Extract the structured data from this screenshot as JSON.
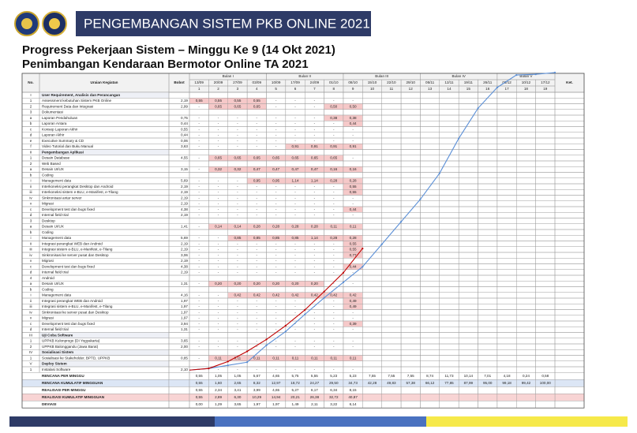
{
  "banner": "PENGEMBANGAN SISTEM PKB ONLINE 2021",
  "title": "Progress Pekerjaan Sistem – Minggu Ke 9 (14 Okt 2021)",
  "subtitle": "Penimbangan Kendaraan Bermotor Online TA 2021",
  "table": {
    "headers": {
      "no": "No.",
      "item": "Uraian Kegiatan",
      "bobot": "Bobot",
      "ket": "Ket.",
      "months": [
        "Bulan I",
        "Bulan II",
        "Bulan III",
        "Bulan IV",
        "Bulan V"
      ],
      "month_spans": [
        4,
        4,
        4,
        4,
        3
      ],
      "dates": [
        "13/09",
        "20/09",
        "27/09",
        "03/09",
        "10/09",
        "17/09",
        "24/09",
        "01/10",
        "08/10",
        "15/10",
        "22/10",
        "29/10",
        "05/11",
        "12/11",
        "19/11",
        "26/11",
        "03/12",
        "10/12",
        "17/12"
      ],
      "weeks": [
        1,
        2,
        3,
        4,
        5,
        6,
        7,
        8,
        9,
        10,
        11,
        12,
        13,
        14,
        15,
        16,
        17,
        18,
        19
      ]
    },
    "rows": [
      {
        "no": "I",
        "item": "User Requirement, Analisis dan Perancangan",
        "section": true
      },
      {
        "no": "1",
        "item": "Assessment kebutuhan Sistem PKB Online",
        "bobot": "2,19",
        "cells": [
          "0,55",
          "0,55",
          "0,55",
          "0,55",
          "-",
          "-",
          "-",
          "-",
          "-"
        ]
      },
      {
        "no": "2",
        "item": "Requirement Data dan Integrasi",
        "bobot": "2,99",
        "cells": [
          "-",
          "0,65",
          "0,65",
          "0,65",
          "-",
          "-",
          "-",
          "0,50",
          "0,50"
        ]
      },
      {
        "no": "3",
        "item": "Dokumentasi"
      },
      {
        "no": "a",
        "item": "Laporan Pendahuluan",
        "bobot": "0,75",
        "cells": [
          "-",
          "-",
          "-",
          "-",
          "-",
          "-",
          "-",
          "0,38",
          "0,38"
        ]
      },
      {
        "no": "b",
        "item": "Laporan Antara",
        "bobot": "0,44",
        "cells": [
          "-",
          "-",
          "-",
          "-",
          "-",
          "-",
          "-",
          "-",
          "0,44"
        ]
      },
      {
        "no": "c",
        "item": "Konsep Laporan Akhir",
        "bobot": "0,55",
        "cells": [
          "-",
          "-",
          "-",
          "-",
          "-",
          "-",
          "-",
          "-",
          "-"
        ]
      },
      {
        "no": "d",
        "item": "Laporan Akhir",
        "bobot": "0,44",
        "cells": [
          "-",
          "-",
          "-",
          "-",
          "-",
          "-",
          "-",
          "-",
          "-"
        ]
      },
      {
        "no": "e",
        "item": "Executive Summary & CD",
        "bobot": "0,06",
        "cells": [
          "-",
          "-",
          "-",
          "-",
          "-",
          "-",
          "-",
          "-",
          "-"
        ]
      },
      {
        "no": "f",
        "item": "Video Tutorial dan Buku Manual",
        "bobot": "3,63",
        "cells": [
          "-",
          "-",
          "-",
          "-",
          "-",
          "0,91",
          "0,91",
          "0,91",
          "0,91"
        ]
      },
      {
        "no": "II",
        "item": "Pengembangan Aplikasi",
        "section": true
      },
      {
        "no": "1",
        "item": "Desain Database",
        "bobot": "4,55",
        "cells": [
          "-",
          "0,65",
          "0,65",
          "0,65",
          "0,65",
          "0,65",
          "0,65",
          "0,65",
          "-"
        ]
      },
      {
        "no": "2",
        "item": "Web Based"
      },
      {
        "no": "a",
        "item": "Desain UI/UX",
        "bobot": "3,15",
        "cells": [
          "-",
          "0,32",
          "0,32",
          "0,47",
          "0,47",
          "0,47",
          "0,47",
          "0,16",
          "0,16"
        ]
      },
      {
        "no": "b",
        "item": "Coding"
      },
      {
        "no": "i",
        "item": "Management data",
        "bobot": "5,69",
        "cells": [
          "-",
          "-",
          "-",
          "0,95",
          "0,95",
          "1,14",
          "1,14",
          "0,28",
          "0,28"
        ]
      },
      {
        "no": "ii",
        "item": "Interkoneksi perangkat Desktop dan Android",
        "bobot": "2,19",
        "cells": [
          "-",
          "-",
          "-",
          "-",
          "-",
          "-",
          "-",
          "-",
          "0,55"
        ]
      },
      {
        "no": "iii",
        "item": "Interkoneksi sistem e-BLU, e-Manifest, e-Tilang",
        "bobot": "2,19",
        "cells": [
          "-",
          "-",
          "-",
          "-",
          "-",
          "-",
          "-",
          "-",
          "0,55"
        ]
      },
      {
        "no": "iv",
        "item": "Sinkronisasi antar server",
        "bobot": "2,19",
        "cells": [
          "-",
          "-",
          "-",
          "-",
          "-",
          "-",
          "-",
          "-",
          "-"
        ]
      },
      {
        "no": "v",
        "item": "Migrasi",
        "bobot": "2,19",
        "cells": [
          "-",
          "-",
          "-",
          "-",
          "-",
          "-",
          "-",
          "-",
          "-"
        ]
      },
      {
        "no": "c",
        "item": "Development test dan bugs fixed",
        "bobot": "4,38",
        "cells": [
          "-",
          "-",
          "-",
          "-",
          "-",
          "-",
          "-",
          "-",
          "0,44"
        ]
      },
      {
        "no": "d",
        "item": "Internal field trial",
        "bobot": "2,19",
        "cells": [
          "-",
          "-",
          "-",
          "-",
          "-",
          "-",
          "-",
          "-",
          "-"
        ]
      },
      {
        "no": "3",
        "item": "Desktop"
      },
      {
        "no": "a",
        "item": "Desain UI/UX",
        "bobot": "1,41",
        "cells": [
          "-",
          "0,14",
          "0,14",
          "0,28",
          "0,28",
          "0,28",
          "0,28",
          "0,11",
          "0,11"
        ]
      },
      {
        "no": "b",
        "item": "Coding"
      },
      {
        "no": "i",
        "item": "Management data",
        "bobot": "5,69",
        "cells": [
          "-",
          "-",
          "0,85",
          "0,85",
          "0,85",
          "0,85",
          "1,14",
          "0,28",
          "0,28"
        ]
      },
      {
        "no": "ii",
        "item": "Integrasi perangkat WEB dan Android",
        "bobot": "2,19",
        "cells": [
          "-",
          "-",
          "-",
          "-",
          "-",
          "-",
          "-",
          "-",
          "0,55"
        ]
      },
      {
        "no": "iii",
        "item": "Integrasi sistem e-BLU, e-Manifest, e-Tilang",
        "bobot": "2,19",
        "cells": [
          "-",
          "-",
          "-",
          "-",
          "-",
          "-",
          "-",
          "-",
          "0,55"
        ]
      },
      {
        "no": "iv",
        "item": "Sinkronisasi ke server pusat dan Desktop",
        "bobot": "3,06",
        "cells": [
          "-",
          "-",
          "-",
          "-",
          "-",
          "-",
          "-",
          "-",
          "0,77"
        ]
      },
      {
        "no": "v",
        "item": "Migrasi",
        "bobot": "2,19",
        "cells": [
          "-",
          "-",
          "-",
          "-",
          "-",
          "-",
          "-",
          "-",
          "-"
        ]
      },
      {
        "no": "c",
        "item": "Development test dan bugs fixed",
        "bobot": "4,38",
        "cells": [
          "-",
          "-",
          "-",
          "-",
          "-",
          "-",
          "-",
          "-",
          "0,44"
        ]
      },
      {
        "no": "d",
        "item": "Internal field trial",
        "bobot": "2,19",
        "cells": [
          "-",
          "-",
          "-",
          "-",
          "-",
          "-",
          "-",
          "-",
          "-"
        ]
      },
      {
        "no": "4",
        "item": "Android"
      },
      {
        "no": "a",
        "item": "Desain UI/UX",
        "bobot": "1,31",
        "cells": [
          "-",
          "0,20",
          "0,20",
          "0,20",
          "0,20",
          "0,20",
          "0,20",
          "-",
          "-"
        ]
      },
      {
        "no": "b",
        "item": "Coding"
      },
      {
        "no": "i",
        "item": "Management data",
        "bobot": "4,16",
        "cells": [
          "-",
          "-",
          "0,42",
          "0,42",
          "0,42",
          "0,42",
          "0,42",
          "0,42",
          "0,42"
        ]
      },
      {
        "no": "ii",
        "item": "Integrasi perangkat WEB dan Android",
        "bobot": "1,97",
        "cells": [
          "-",
          "-",
          "-",
          "-",
          "-",
          "-",
          "-",
          "-",
          "0,49"
        ]
      },
      {
        "no": "iii",
        "item": "Integrasi sistem e-BLU, e-Manifest, e-Tilang",
        "bobot": "1,97",
        "cells": [
          "-",
          "-",
          "-",
          "-",
          "-",
          "-",
          "-",
          "-",
          "0,49"
        ]
      },
      {
        "no": "iv",
        "item": "Sinkronisasi ke server pusat dan Desktop",
        "bobot": "1,97",
        "cells": [
          "-",
          "-",
          "-",
          "-",
          "-",
          "-",
          "-",
          "-",
          "-"
        ]
      },
      {
        "no": "v",
        "item": "Migrasi",
        "bobot": "1,97",
        "cells": [
          "-",
          "-",
          "-",
          "-",
          "-",
          "-",
          "-",
          "-",
          "-"
        ]
      },
      {
        "no": "c",
        "item": "Development test dan bugs fixed",
        "bobot": "3,94",
        "cells": [
          "-",
          "-",
          "-",
          "-",
          "-",
          "-",
          "-",
          "-",
          "0,39"
        ]
      },
      {
        "no": "d",
        "item": "Internal field trial",
        "bobot": "1,31",
        "cells": [
          "-",
          "-",
          "-",
          "-",
          "-",
          "-",
          "-",
          "-",
          "-"
        ]
      },
      {
        "no": "III",
        "item": "Uji Coba Software",
        "section": true
      },
      {
        "no": "1",
        "item": "UPPKB Kulonprogo (DI Yogyakarta)",
        "bobot": "3,65",
        "cells": [
          "-",
          "-",
          "-",
          "-",
          "-",
          "-",
          "-",
          "-",
          "-"
        ]
      },
      {
        "no": "2",
        "item": "UPPKB Balonggandu (Jawa Barat)",
        "bobot": "2,00",
        "cells": [
          "-",
          "-",
          "-",
          "-",
          "-",
          "-",
          "-",
          "-",
          "-"
        ]
      },
      {
        "no": "IV",
        "item": "Sosialisasi Sistem",
        "section": true
      },
      {
        "no": "1",
        "item": "Sosialisasi ke Stakeholder, BPTD, UPPKB",
        "bobot": "0,85",
        "cells": [
          "-",
          "0,11",
          "0,11",
          "0,11",
          "0,11",
          "0,11",
          "0,11",
          "0,11",
          "0,11"
        ]
      },
      {
        "no": "V",
        "item": "Deploy Sistem",
        "section": true
      },
      {
        "no": "1",
        "item": "Instalasi Software",
        "bobot": "2,10",
        "cells": [
          "-",
          "-",
          "-",
          "-",
          "-",
          "-",
          "-",
          "-",
          "-"
        ]
      }
    ],
    "summary": [
      {
        "label": "RENCANA PER MINGGU",
        "cells": [
          "0,55",
          "1,05",
          "1,05",
          "5,67",
          "4,65",
          "5,75",
          "5,55",
          "5,23",
          "5,23",
          "7,55",
          "7,55",
          "7,55",
          "8,74",
          "11,73",
          "10,14",
          "7,01",
          "4,18",
          "0,24",
          "0,58"
        ]
      },
      {
        "label": "RENCANA KUMULATIF MINGGUAN",
        "color": "#5b8fd6",
        "values": [
          0.55,
          1.6,
          2.65,
          8.32,
          12.97,
          18.72,
          24.27,
          29.5,
          34.73,
          42.28,
          49.83,
          57.38,
          66.12,
          77.85,
          87.99,
          95.0,
          99.18,
          99.42,
          100.0
        ],
        "value_labels": [
          "0,55",
          "1,60",
          "2,65",
          "8,32",
          "12,97",
          "18,72",
          "24,27",
          "29,50",
          "34,73",
          "42,28",
          "49,83",
          "57,38",
          "66,12",
          "77,85",
          "87,99",
          "95,00",
          "99,18",
          "99,42",
          "100,00"
        ]
      },
      {
        "label": "REALISASI PER MINGGU",
        "cells": [
          "0,55",
          "2,34",
          "3,41",
          "3,99",
          "4,65",
          "5,27",
          "6,17",
          "6,34",
          "8,15"
        ]
      },
      {
        "label": "REALISASI KUMULATIF MINGGUAN",
        "color": "#c00000",
        "values": [
          0.55,
          2.89,
          6.3,
          10.29,
          14.94,
          20.21,
          26.38,
          32.72,
          40.87
        ],
        "value_labels": [
          "0,55",
          "2,89",
          "6,30",
          "10,29",
          "14,94",
          "20,21",
          "26,38",
          "32,72",
          "40,87"
        ]
      },
      {
        "label": "DEVIASI",
        "cells": [
          "0,00",
          "1,29",
          "3,65",
          "1,97",
          "1,97",
          "1,49",
          "2,11",
          "3,22",
          "6,14"
        ]
      }
    ]
  }
}
